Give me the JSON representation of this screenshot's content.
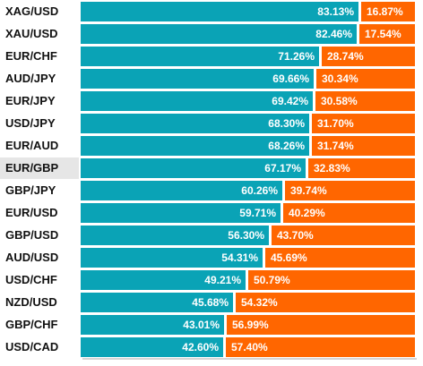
{
  "colors": {
    "long": "#0aa3b6",
    "short": "#ff6600",
    "label_text": "#111111",
    "highlight_row": "#e6e6e6"
  },
  "chart_data": {
    "type": "bar",
    "orientation": "horizontal",
    "stacked": true,
    "title": "",
    "xlabel": "",
    "ylabel": "",
    "xlim": [
      0,
      100
    ],
    "grid": false,
    "legend": "none",
    "highlighted_category": "EUR/GBP",
    "categories": [
      "XAG/USD",
      "XAU/USD",
      "EUR/CHF",
      "AUD/JPY",
      "EUR/JPY",
      "USD/JPY",
      "EUR/AUD",
      "EUR/GBP",
      "GBP/JPY",
      "EUR/USD",
      "GBP/USD",
      "AUD/USD",
      "USD/CHF",
      "NZD/USD",
      "GBP/CHF",
      "USD/CAD"
    ],
    "series": [
      {
        "color": "#0aa3b6",
        "values": [
          83.13,
          82.46,
          71.26,
          69.66,
          69.42,
          68.3,
          68.26,
          67.17,
          60.26,
          59.71,
          56.3,
          54.31,
          49.21,
          45.68,
          43.01,
          42.6
        ],
        "labels": [
          "83.13%",
          "82.46%",
          "71.26%",
          "69.66%",
          "69.42%",
          "68.30%",
          "68.26%",
          "67.17%",
          "60.26%",
          "59.71%",
          "56.30%",
          "54.31%",
          "49.21%",
          "45.68%",
          "43.01%",
          "42.60%"
        ]
      },
      {
        "color": "#ff6600",
        "values": [
          16.87,
          17.54,
          28.74,
          30.34,
          30.58,
          31.7,
          31.74,
          32.83,
          39.74,
          40.29,
          43.7,
          45.69,
          50.79,
          54.32,
          56.99,
          57.4
        ],
        "labels": [
          "16.87%",
          "17.54%",
          "28.74%",
          "30.34%",
          "30.58%",
          "31.70%",
          "31.74%",
          "32.83%",
          "39.74%",
          "40.29%",
          "43.70%",
          "45.69%",
          "50.79%",
          "54.32%",
          "56.99%",
          "57.40%"
        ]
      }
    ]
  }
}
